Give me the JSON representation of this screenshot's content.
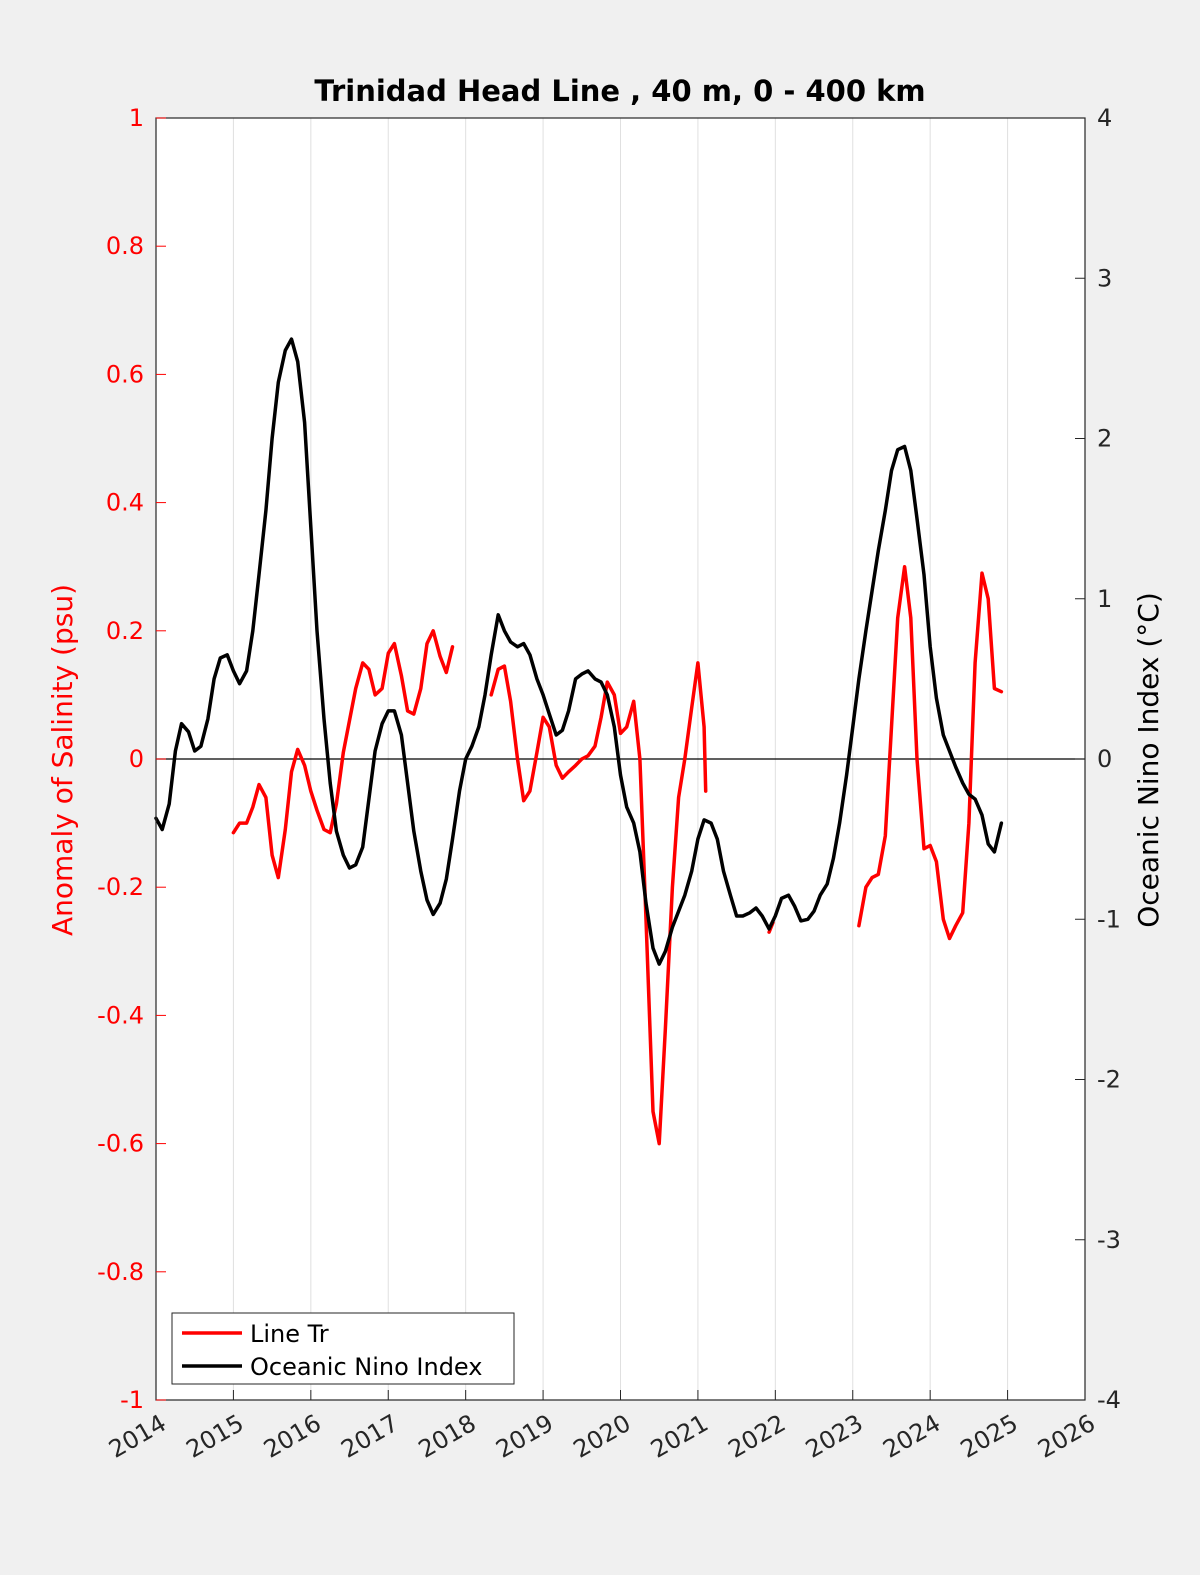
{
  "chart_data": {
    "type": "line",
    "title": "Trinidad Head Line , 40 m, 0 - 400 km",
    "xlabel": "",
    "ylabel_left": "Anomaly of Salinity (psu)",
    "ylabel_right": "Oceanic Nino Index (°C)",
    "xlim": [
      2014,
      2026
    ],
    "ylim_left": [
      -1,
      1
    ],
    "ylim_right": [
      -4,
      4
    ],
    "x_ticks": [
      "2014",
      "2015",
      "2016",
      "2017",
      "2018",
      "2019",
      "2020",
      "2021",
      "2022",
      "2023",
      "2024",
      "2025",
      "2026"
    ],
    "y_left_ticks": [
      "-1",
      "-0.8",
      "-0.6",
      "-0.4",
      "-0.2",
      "0",
      "0.2",
      "0.4",
      "0.6",
      "0.8",
      "1"
    ],
    "y_right_ticks": [
      "-4",
      "-3",
      "-2",
      "-1",
      "0",
      "1",
      "2",
      "3",
      "4"
    ],
    "grid": "vertical",
    "zero_line": true,
    "legend": {
      "placement": "bottom-left",
      "entries": [
        "Line Tr",
        "Oceanic Nino Index"
      ]
    },
    "colors": {
      "salinity": "#ff0000",
      "oni": "#000000",
      "left_axis": "#ff0000",
      "right_axis": "#262626"
    },
    "series": [
      {
        "name": "Line Tr",
        "axis": "left",
        "color": "#ff0000",
        "segments": [
          [
            [
              2015.0,
              -0.115
            ],
            [
              2015.08,
              -0.1
            ],
            [
              2015.17,
              -0.1
            ],
            [
              2015.25,
              -0.075
            ],
            [
              2015.33,
              -0.04
            ],
            [
              2015.42,
              -0.06
            ],
            [
              2015.5,
              -0.15
            ],
            [
              2015.58,
              -0.185
            ],
            [
              2015.67,
              -0.11
            ],
            [
              2015.75,
              -0.02
            ],
            [
              2015.83,
              0.015
            ],
            [
              2015.92,
              -0.01
            ],
            [
              2016.0,
              -0.05
            ],
            [
              2016.08,
              -0.08
            ],
            [
              2016.17,
              -0.11
            ],
            [
              2016.25,
              -0.115
            ],
            [
              2016.33,
              -0.07
            ],
            [
              2016.42,
              0.01
            ],
            [
              2016.5,
              0.06
            ],
            [
              2016.58,
              0.11
            ],
            [
              2016.67,
              0.15
            ],
            [
              2016.75,
              0.14
            ],
            [
              2016.83,
              0.1
            ],
            [
              2016.92,
              0.11
            ],
            [
              2017.0,
              0.165
            ],
            [
              2017.08,
              0.18
            ],
            [
              2017.17,
              0.13
            ],
            [
              2017.25,
              0.075
            ],
            [
              2017.33,
              0.07
            ],
            [
              2017.42,
              0.11
            ],
            [
              2017.5,
              0.18
            ],
            [
              2017.58,
              0.2
            ],
            [
              2017.67,
              0.16
            ],
            [
              2017.75,
              0.135
            ],
            [
              2017.83,
              0.175
            ]
          ],
          [
            [
              2018.33,
              0.1
            ],
            [
              2018.42,
              0.14
            ],
            [
              2018.5,
              0.145
            ],
            [
              2018.58,
              0.09
            ],
            [
              2018.67,
              0.0
            ],
            [
              2018.75,
              -0.065
            ],
            [
              2018.83,
              -0.05
            ],
            [
              2018.92,
              0.01
            ],
            [
              2019.0,
              0.065
            ],
            [
              2019.08,
              0.05
            ],
            [
              2019.17,
              -0.01
            ],
            [
              2019.25,
              -0.03
            ],
            [
              2019.33,
              -0.02
            ],
            [
              2019.42,
              -0.01
            ],
            [
              2019.5,
              0.0
            ],
            [
              2019.58,
              0.005
            ],
            [
              2019.67,
              0.02
            ],
            [
              2019.75,
              0.065
            ],
            [
              2019.83,
              0.12
            ],
            [
              2019.92,
              0.1
            ],
            [
              2020.0,
              0.04
            ],
            [
              2020.08,
              0.05
            ],
            [
              2020.17,
              0.09
            ],
            [
              2020.25,
              0.0
            ],
            [
              2020.33,
              -0.25
            ],
            [
              2020.42,
              -0.55
            ],
            [
              2020.5,
              -0.6
            ],
            [
              2020.58,
              -0.42
            ],
            [
              2020.67,
              -0.2
            ],
            [
              2020.75,
              -0.06
            ],
            [
              2020.83,
              0.0
            ],
            [
              2020.92,
              0.08
            ],
            [
              2021.0,
              0.15
            ],
            [
              2021.08,
              0.05
            ],
            [
              2021.1,
              -0.05
            ]
          ],
          [
            [
              2021.92,
              -0.27
            ],
            [
              2021.97,
              -0.255
            ]
          ],
          [
            [
              2023.08,
              -0.26
            ],
            [
              2023.17,
              -0.2
            ],
            [
              2023.25,
              -0.185
            ],
            [
              2023.33,
              -0.18
            ],
            [
              2023.42,
              -0.12
            ],
            [
              2023.5,
              0.05
            ],
            [
              2023.58,
              0.22
            ],
            [
              2023.67,
              0.3
            ],
            [
              2023.75,
              0.22
            ],
            [
              2023.83,
              0.0
            ],
            [
              2023.92,
              -0.14
            ],
            [
              2024.0,
              -0.135
            ],
            [
              2024.08,
              -0.16
            ],
            [
              2024.17,
              -0.25
            ],
            [
              2024.25,
              -0.28
            ],
            [
              2024.33,
              -0.26
            ],
            [
              2024.42,
              -0.24
            ],
            [
              2024.5,
              -0.1
            ],
            [
              2024.58,
              0.15
            ],
            [
              2024.67,
              0.29
            ],
            [
              2024.75,
              0.25
            ],
            [
              2024.83,
              0.11
            ],
            [
              2024.92,
              0.105
            ]
          ]
        ]
      },
      {
        "name": "Oceanic Nino Index",
        "axis": "right",
        "color": "#000000",
        "segments": [
          [
            [
              2014.0,
              -0.37
            ],
            [
              2014.08,
              -0.44
            ],
            [
              2014.17,
              -0.28
            ],
            [
              2014.25,
              0.05
            ],
            [
              2014.33,
              0.22
            ],
            [
              2014.42,
              0.17
            ],
            [
              2014.5,
              0.05
            ],
            [
              2014.58,
              0.08
            ],
            [
              2014.67,
              0.25
            ],
            [
              2014.75,
              0.5
            ],
            [
              2014.83,
              0.63
            ],
            [
              2014.92,
              0.65
            ],
            [
              2015.0,
              0.55
            ],
            [
              2015.08,
              0.47
            ],
            [
              2015.17,
              0.55
            ],
            [
              2015.25,
              0.8
            ],
            [
              2015.33,
              1.15
            ],
            [
              2015.42,
              1.55
            ],
            [
              2015.5,
              2.0
            ],
            [
              2015.58,
              2.35
            ],
            [
              2015.67,
              2.55
            ],
            [
              2015.75,
              2.62
            ],
            [
              2015.83,
              2.48
            ],
            [
              2015.92,
              2.1
            ],
            [
              2016.0,
              1.45
            ],
            [
              2016.08,
              0.8
            ],
            [
              2016.17,
              0.25
            ],
            [
              2016.25,
              -0.15
            ],
            [
              2016.33,
              -0.45
            ],
            [
              2016.42,
              -0.6
            ],
            [
              2016.5,
              -0.68
            ],
            [
              2016.58,
              -0.66
            ],
            [
              2016.67,
              -0.55
            ],
            [
              2016.75,
              -0.25
            ],
            [
              2016.83,
              0.05
            ],
            [
              2016.92,
              0.22
            ],
            [
              2017.0,
              0.3
            ],
            [
              2017.08,
              0.3
            ],
            [
              2017.17,
              0.15
            ],
            [
              2017.25,
              -0.15
            ],
            [
              2017.33,
              -0.45
            ],
            [
              2017.42,
              -0.7
            ],
            [
              2017.5,
              -0.88
            ],
            [
              2017.58,
              -0.97
            ],
            [
              2017.67,
              -0.9
            ],
            [
              2017.75,
              -0.75
            ],
            [
              2017.83,
              -0.5
            ],
            [
              2017.92,
              -0.2
            ],
            [
              2018.0,
              0.0
            ],
            [
              2018.08,
              0.08
            ],
            [
              2018.17,
              0.2
            ],
            [
              2018.25,
              0.4
            ],
            [
              2018.33,
              0.65
            ],
            [
              2018.42,
              0.9
            ],
            [
              2018.5,
              0.8
            ],
            [
              2018.58,
              0.73
            ],
            [
              2018.67,
              0.7
            ],
            [
              2018.75,
              0.72
            ],
            [
              2018.83,
              0.65
            ],
            [
              2018.92,
              0.5
            ],
            [
              2019.0,
              0.4
            ],
            [
              2019.08,
              0.28
            ],
            [
              2019.17,
              0.15
            ],
            [
              2019.25,
              0.18
            ],
            [
              2019.33,
              0.3
            ],
            [
              2019.42,
              0.5
            ],
            [
              2019.5,
              0.53
            ],
            [
              2019.58,
              0.55
            ],
            [
              2019.67,
              0.5
            ],
            [
              2019.75,
              0.48
            ],
            [
              2019.83,
              0.4
            ],
            [
              2019.92,
              0.2
            ],
            [
              2020.0,
              -0.1
            ],
            [
              2020.08,
              -0.3
            ],
            [
              2020.17,
              -0.4
            ],
            [
              2020.25,
              -0.58
            ],
            [
              2020.33,
              -0.9
            ],
            [
              2020.42,
              -1.18
            ],
            [
              2020.5,
              -1.28
            ],
            [
              2020.58,
              -1.2
            ],
            [
              2020.67,
              -1.05
            ],
            [
              2020.75,
              -0.95
            ],
            [
              2020.83,
              -0.85
            ],
            [
              2020.92,
              -0.7
            ],
            [
              2021.0,
              -0.5
            ],
            [
              2021.08,
              -0.38
            ],
            [
              2021.17,
              -0.4
            ],
            [
              2021.25,
              -0.5
            ],
            [
              2021.33,
              -0.7
            ],
            [
              2021.42,
              -0.85
            ],
            [
              2021.5,
              -0.98
            ],
            [
              2021.58,
              -0.98
            ],
            [
              2021.67,
              -0.96
            ],
            [
              2021.75,
              -0.93
            ],
            [
              2021.83,
              -0.98
            ],
            [
              2021.92,
              -1.06
            ],
            [
              2022.0,
              -0.98
            ],
            [
              2022.08,
              -0.87
            ],
            [
              2022.17,
              -0.85
            ],
            [
              2022.25,
              -0.92
            ],
            [
              2022.33,
              -1.01
            ],
            [
              2022.42,
              -1.0
            ],
            [
              2022.5,
              -0.95
            ],
            [
              2022.58,
              -0.85
            ],
            [
              2022.67,
              -0.78
            ],
            [
              2022.75,
              -0.62
            ],
            [
              2022.83,
              -0.4
            ],
            [
              2022.92,
              -0.1
            ],
            [
              2023.0,
              0.2
            ],
            [
              2023.08,
              0.5
            ],
            [
              2023.17,
              0.8
            ],
            [
              2023.25,
              1.05
            ],
            [
              2023.33,
              1.3
            ],
            [
              2023.42,
              1.55
            ],
            [
              2023.5,
              1.8
            ],
            [
              2023.58,
              1.93
            ],
            [
              2023.67,
              1.95
            ],
            [
              2023.75,
              1.8
            ],
            [
              2023.83,
              1.5
            ],
            [
              2023.92,
              1.15
            ],
            [
              2024.0,
              0.7
            ],
            [
              2024.08,
              0.38
            ],
            [
              2024.17,
              0.15
            ],
            [
              2024.25,
              0.05
            ],
            [
              2024.33,
              -0.05
            ],
            [
              2024.42,
              -0.15
            ],
            [
              2024.5,
              -0.22
            ],
            [
              2024.58,
              -0.25
            ],
            [
              2024.67,
              -0.35
            ],
            [
              2024.75,
              -0.53
            ],
            [
              2024.83,
              -0.58
            ],
            [
              2024.92,
              -0.4
            ]
          ]
        ]
      }
    ]
  }
}
